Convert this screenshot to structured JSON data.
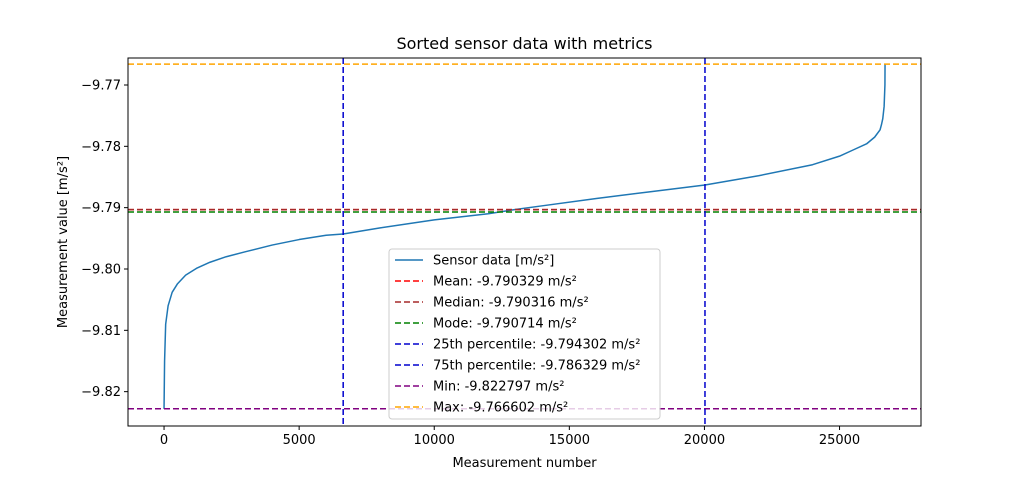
{
  "chart_data": {
    "type": "line",
    "title": "Sorted sensor data with metrics",
    "xlabel": "Measurement number",
    "ylabel": "Measurement value [m/s²]",
    "xlim": [
      -1334,
      28015
    ],
    "ylim": [
      -9.8256,
      -9.7656
    ],
    "x_ticks": [
      0,
      5000,
      10000,
      15000,
      20000,
      25000
    ],
    "x_tick_labels": [
      "0",
      "5000",
      "10000",
      "15000",
      "20000",
      "25000"
    ],
    "y_ticks": [
      -9.82,
      -9.81,
      -9.8,
      -9.79,
      -9.78,
      -9.77
    ],
    "y_tick_labels": [
      "−9.82",
      "−9.81",
      "−9.80",
      "−9.79",
      "−9.78",
      "−9.77"
    ],
    "grid": false,
    "legend_position": "lower center",
    "series": [
      {
        "name": "Sensor data [m/s²]",
        "color": "#1f77b4",
        "x": [
          0,
          20,
          60,
          150,
          300,
          500,
          800,
          1200,
          1700,
          2300,
          3000,
          4000,
          5000,
          6000,
          6630,
          8000,
          10000,
          12000,
          13000,
          14000,
          16000,
          18000,
          20020,
          22000,
          24000,
          25000,
          25500,
          26000,
          26300,
          26500,
          26550,
          26600,
          26650,
          26680,
          26684
        ],
        "y": [
          -9.8228,
          -9.815,
          -9.809,
          -9.806,
          -9.8038,
          -9.8024,
          -9.801,
          -9.7999,
          -9.7989,
          -9.798,
          -9.7972,
          -9.7961,
          -9.7952,
          -9.7945,
          -9.7943,
          -9.7933,
          -9.792,
          -9.791,
          -9.7903,
          -9.7897,
          -9.7885,
          -9.7874,
          -9.7863,
          -9.7848,
          -9.783,
          -9.7816,
          -9.7806,
          -9.7796,
          -9.7785,
          -9.7773,
          -9.7765,
          -9.7755,
          -9.7735,
          -9.77,
          -9.7666
        ]
      }
    ],
    "hlines": [
      {
        "name": "Mean: -9.790329 m/s²",
        "value": -9.790329,
        "color": "#ff0000"
      },
      {
        "name": "Median: -9.790316 m/s²",
        "value": -9.790316,
        "color": "#a52a2a"
      },
      {
        "name": "Mode: -9.790714 m/s²",
        "value": -9.790714,
        "color": "#008000"
      },
      {
        "name": "Min: -9.822797 m/s²",
        "value": -9.822797,
        "color": "#800080"
      },
      {
        "name": "Max: -9.766602 m/s²",
        "value": -9.766602,
        "color": "#ffa500"
      }
    ],
    "vlines": [
      {
        "name": "25th percentile: -9.794302 m/s²",
        "value": 6630,
        "color": "#0000cd"
      },
      {
        "name": "75th percentile: -9.786329 m/s²",
        "value": 20020,
        "color": "#0000cd"
      }
    ],
    "legend_entries": [
      {
        "label": "Sensor data [m/s²]",
        "color": "#1f77b4",
        "dashed": false
      },
      {
        "label": "Mean: -9.790329 m/s²",
        "color": "#ff0000",
        "dashed": true
      },
      {
        "label": "Median: -9.790316 m/s²",
        "color": "#a52a2a",
        "dashed": true
      },
      {
        "label": "Mode: -9.790714 m/s²",
        "color": "#008000",
        "dashed": true
      },
      {
        "label": "25th percentile: -9.794302 m/s²",
        "color": "#0000cd",
        "dashed": true
      },
      {
        "label": "75th percentile: -9.786329 m/s²",
        "color": "#0000cd",
        "dashed": true
      },
      {
        "label": "Min: -9.822797 m/s²",
        "color": "#800080",
        "dashed": true
      },
      {
        "label": "Max: -9.766602 m/s²",
        "color": "#ffa500",
        "dashed": true
      }
    ]
  }
}
